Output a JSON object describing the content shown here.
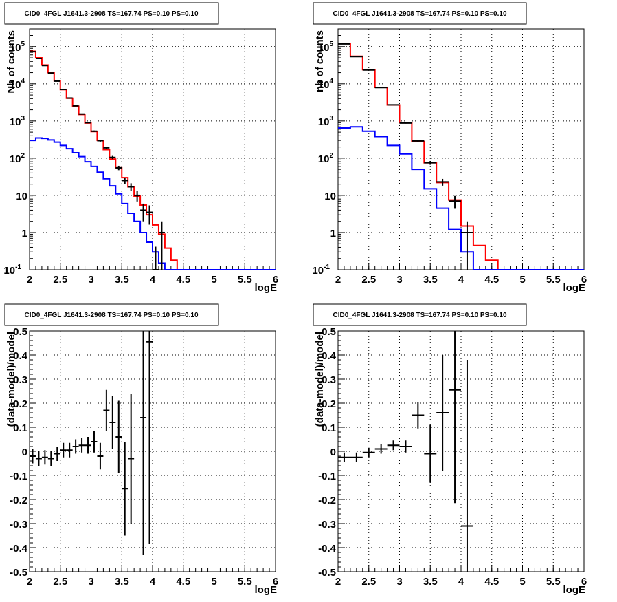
{
  "colors": {
    "data": "#000000",
    "model_total": "#ff0000",
    "model_component": "#0000ff",
    "grid": "#000000"
  },
  "chart_data": [
    {
      "type": "line",
      "title": "CID0_4FGL J1641.3-2908 TS=167.74 PS=0.10 PS=0.10",
      "xlabel": "logE",
      "ylabel": "Nb of counts",
      "xlim": [
        2,
        6
      ],
      "ylim": [
        0.1,
        300000
      ],
      "log_y": true,
      "grid": true,
      "xticks": [
        "2",
        "2.5",
        "3",
        "3.5",
        "4",
        "4.5",
        "5",
        "5.5",
        "6"
      ],
      "yticks": [
        {
          "value": 0.1,
          "base": "10",
          "exp": "-1"
        },
        {
          "value": 1,
          "label": "1"
        },
        {
          "value": 10,
          "label": "10"
        },
        {
          "value": 100,
          "base": "10",
          "exp": "2"
        },
        {
          "value": 1000,
          "base": "10",
          "exp": "3"
        },
        {
          "value": 10000,
          "base": "10",
          "exp": "4"
        },
        {
          "value": 100000,
          "base": "10",
          "exp": "5"
        }
      ],
      "bin_width": 0.1,
      "series": [
        {
          "role": "model_total",
          "bins_lo": [
            2.0,
            2.1,
            2.2,
            2.3,
            2.4,
            2.5,
            2.6,
            2.7,
            2.8,
            2.9,
            3.0,
            3.1,
            3.2,
            3.3,
            3.4,
            3.5,
            3.6,
            3.7,
            3.8,
            3.9,
            4.0,
            4.1,
            4.2,
            4.3,
            4.4,
            4.5,
            4.6,
            4.7,
            4.8,
            4.9,
            5.0,
            5.1,
            5.2,
            5.3,
            5.4,
            5.5,
            5.6,
            5.7,
            5.8,
            5.9
          ],
          "values": [
            75000,
            50000,
            32000,
            20000,
            12000,
            7000,
            4100,
            2500,
            1500,
            880,
            520,
            300,
            170,
            95,
            55,
            30,
            17,
            9.5,
            5.5,
            3.0,
            1.6,
            0.9,
            0.38,
            0.18,
            0.1,
            0.1,
            0.1,
            0.1,
            0.1,
            0.1,
            0.1,
            0.1,
            0.1,
            0.1,
            0.1,
            0.1,
            0.1,
            0.1,
            0.1,
            0.1
          ]
        },
        {
          "role": "model_component",
          "bins_lo": [
            2.0,
            2.1,
            2.2,
            2.3,
            2.4,
            2.5,
            2.6,
            2.7,
            2.8,
            2.9,
            3.0,
            3.1,
            3.2,
            3.3,
            3.4,
            3.5,
            3.6,
            3.7,
            3.8,
            3.9,
            4.0,
            4.1,
            4.2,
            4.3,
            4.4,
            4.5,
            4.6,
            4.7,
            4.8,
            4.9,
            5.0,
            5.1,
            5.2,
            5.3,
            5.4,
            5.5,
            5.6,
            5.7,
            5.8,
            5.9
          ],
          "values": [
            300,
            350,
            340,
            310,
            270,
            220,
            180,
            140,
            110,
            80,
            60,
            42,
            28,
            18,
            11,
            6,
            3.3,
            2.0,
            1.0,
            0.55,
            0.3,
            0.15,
            0.1,
            0.1,
            0.1,
            0.1,
            0.1,
            0.1,
            0.1,
            0.1,
            0.1,
            0.1,
            0.1,
            0.1,
            0.1,
            0.1,
            0.1,
            0.1,
            0.1,
            0.1
          ]
        },
        {
          "role": "data",
          "x": [
            2.05,
            2.15,
            2.25,
            2.35,
            2.45,
            2.55,
            2.65,
            2.75,
            2.85,
            2.95,
            3.05,
            3.15,
            3.25,
            3.35,
            3.45,
            3.55,
            3.65,
            3.75,
            3.85,
            3.95,
            4.05,
            4.15
          ],
          "y": [
            73000,
            48000,
            31000,
            19500,
            11800,
            7050,
            4150,
            2560,
            1540,
            900,
            530,
            295,
            190,
            105,
            55,
            25,
            17,
            10,
            4.0,
            3.5,
            0.1,
            1.0
          ],
          "err_lo": [
            73000,
            48000,
            31000,
            19500,
            11800,
            7050,
            4150,
            2560,
            1540,
            900,
            530,
            295,
            190,
            105,
            55,
            25,
            17,
            10,
            4.0,
            3.5,
            0.1,
            1.0
          ],
          "err_hi": [
            73000,
            48000,
            31000,
            19500,
            11800,
            7050,
            4150,
            2560,
            1540,
            900,
            530,
            295,
            190,
            105,
            55,
            25,
            17,
            10,
            4.0,
            3.5,
            0.1,
            1.0
          ]
        }
      ]
    },
    {
      "type": "line",
      "title": "CID0_4FGL J1641.3-2908 TS=167.74 PS=0.10 PS=0.10",
      "xlabel": "logE",
      "ylabel": "nb of counts",
      "xlim": [
        2,
        6
      ],
      "ylim": [
        0.1,
        300000
      ],
      "log_y": true,
      "grid": true,
      "xticks": [
        "2",
        "2.5",
        "3",
        "3.5",
        "4",
        "4.5",
        "5",
        "5.5",
        "6"
      ],
      "yticks": [
        {
          "value": 0.1,
          "base": "10",
          "exp": "-1"
        },
        {
          "value": 1,
          "label": "1"
        },
        {
          "value": 10,
          "label": "10"
        },
        {
          "value": 100,
          "base": "10",
          "exp": "2"
        },
        {
          "value": 1000,
          "base": "10",
          "exp": "3"
        },
        {
          "value": 10000,
          "base": "10",
          "exp": "4"
        },
        {
          "value": 100000,
          "base": "10",
          "exp": "5"
        }
      ],
      "bin_width": 0.2,
      "series": [
        {
          "role": "model_total",
          "bins_lo": [
            2.0,
            2.2,
            2.4,
            2.6,
            2.8,
            3.0,
            3.2,
            3.4,
            3.6,
            3.8,
            4.0,
            4.2,
            4.4,
            4.6,
            4.8,
            5.0,
            5.2,
            5.4,
            5.6,
            5.8
          ],
          "values": [
            120000,
            55000,
            24000,
            8000,
            2700,
            900,
            280,
            75,
            22,
            7.5,
            1.5,
            0.45,
            0.18,
            0.1,
            0.1,
            0.1,
            0.1,
            0.1,
            0.1,
            0.1
          ]
        },
        {
          "role": "model_component",
          "bins_lo": [
            2.0,
            2.2,
            2.4,
            2.6,
            2.8,
            3.0,
            3.2,
            3.4,
            3.6,
            3.8,
            4.0,
            4.2,
            4.4,
            4.6,
            4.8,
            5.0,
            5.2,
            5.4,
            5.6,
            5.8
          ],
          "values": [
            650,
            700,
            530,
            380,
            220,
            130,
            50,
            15,
            4.5,
            1.2,
            0.3,
            0.1,
            0.1,
            0.1,
            0.1,
            0.1,
            0.1,
            0.1,
            0.1,
            0.1
          ]
        },
        {
          "role": "data",
          "x": [
            2.1,
            2.3,
            2.5,
            2.7,
            2.9,
            3.1,
            3.3,
            3.5,
            3.7,
            3.9,
            4.1
          ],
          "y": [
            118000,
            54000,
            23500,
            7950,
            2720,
            880,
            290,
            75,
            23,
            7.0,
            1.0
          ],
          "err_lo": [
            118000,
            54000,
            23500,
            7950,
            2720,
            880,
            290,
            75,
            23,
            7.0,
            1.0
          ],
          "err_hi": [
            118000,
            54000,
            23500,
            7950,
            2720,
            880,
            290,
            75,
            23,
            7.0,
            1.0
          ]
        }
      ]
    },
    {
      "type": "scatter",
      "title": "CID0_4FGL J1641.3-2908 TS=167.74 PS=0.10 PS=0.10",
      "xlabel": "logE",
      "ylabel": "(data-model)/model",
      "xlim": [
        2,
        6
      ],
      "ylim": [
        -0.5,
        0.5
      ],
      "grid": true,
      "xticks": [
        "2",
        "2.5",
        "3",
        "3.5",
        "4",
        "4.5",
        "5",
        "5.5",
        "6"
      ],
      "yticks": [
        "-0.5",
        "-0.4",
        "-0.3",
        "-0.2",
        "-0.1",
        "0",
        "0.1",
        "0.2",
        "0.3",
        "0.4",
        "0.5"
      ],
      "bin_width": 0.1,
      "series": [
        {
          "role": "data",
          "x": [
            2.05,
            2.15,
            2.25,
            2.35,
            2.45,
            2.55,
            2.65,
            2.75,
            2.85,
            2.95,
            3.05,
            3.15,
            3.25,
            3.35,
            3.45,
            3.55,
            3.65,
            3.85,
            3.95
          ],
          "y": [
            -0.02,
            -0.03,
            -0.025,
            -0.03,
            -0.01,
            0.005,
            0.005,
            0.02,
            0.025,
            0.025,
            0.04,
            -0.02,
            0.17,
            0.12,
            0.06,
            -0.155,
            -0.03,
            0.14,
            0.455
          ],
          "err": [
            0.03,
            0.03,
            0.03,
            0.03,
            0.03,
            0.03,
            0.03,
            0.03,
            0.03,
            0.035,
            0.045,
            0.055,
            0.085,
            0.11,
            0.15,
            0.195,
            0.27,
            0.57,
            0.84
          ]
        }
      ]
    },
    {
      "type": "scatter",
      "title": "CID0_4FGL J1641.3-2908 TS=167.74 PS=0.10 PS=0.10",
      "xlabel": "logE",
      "ylabel": "(data-model)/model",
      "xlim": [
        2,
        6
      ],
      "ylim": [
        -0.5,
        0.5
      ],
      "grid": true,
      "xticks": [
        "2",
        "2.5",
        "3",
        "3.5",
        "4",
        "4.5",
        "5",
        "5.5",
        "6"
      ],
      "yticks": [
        "-0.5",
        "-0.4",
        "-0.3",
        "-0.2",
        "-0.1",
        "0",
        "0.1",
        "0.2",
        "0.3",
        "0.4",
        "0.5"
      ],
      "bin_width": 0.2,
      "series": [
        {
          "role": "data",
          "x": [
            2.1,
            2.3,
            2.5,
            2.7,
            2.9,
            3.1,
            3.3,
            3.5,
            3.7,
            3.9,
            4.1
          ],
          "y": [
            -0.025,
            -0.025,
            -0.005,
            0.01,
            0.025,
            0.02,
            0.15,
            -0.01,
            0.16,
            0.255,
            -0.31
          ],
          "err": [
            0.02,
            0.02,
            0.02,
            0.02,
            0.02,
            0.025,
            0.055,
            0.12,
            0.24,
            0.47,
            0.69
          ]
        }
      ]
    }
  ]
}
